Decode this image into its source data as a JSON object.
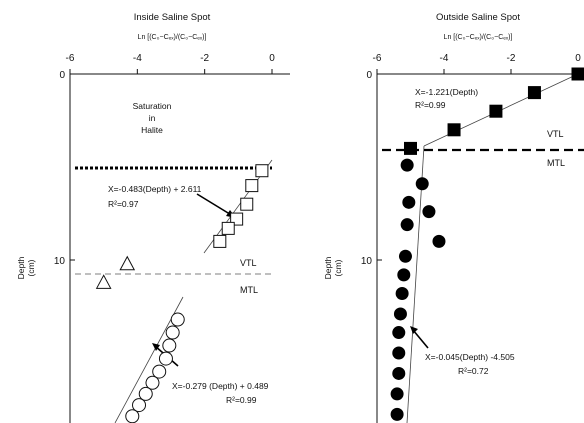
{
  "chart_data": [
    {
      "type": "scatter",
      "title": "Inside Saline Spot",
      "xlabel": "Ln [(C₀−Cₑₓ)/(C₀−Cₑₓ)]",
      "ylabel": "Depth",
      "ylabel_unit": "(cm)",
      "xlim": [
        -6,
        0
      ],
      "ylim": [
        0,
        18.5
      ],
      "x_ticks": [
        "-6",
        "-4",
        "-2",
        "0"
      ],
      "y_ticks": [
        "0",
        "10"
      ],
      "series": [
        {
          "marker": "square",
          "x": [
            -0.3,
            -0.6,
            -0.75,
            -1.05,
            -1.3,
            -1.55
          ],
          "y": [
            5.2,
            6.0,
            7.0,
            7.8,
            8.3,
            9.0
          ]
        },
        {
          "marker": "triangle",
          "x": [
            -4.3,
            -5.0
          ],
          "y": [
            10.2,
            11.2
          ]
        },
        {
          "marker": "circle",
          "x": [
            -2.8,
            -2.95,
            -3.05,
            -3.15,
            -3.35,
            -3.55,
            -3.75,
            -3.95,
            -4.15
          ],
          "y": [
            13.2,
            13.9,
            14.6,
            15.3,
            16.0,
            16.6,
            17.2,
            17.8,
            18.4
          ]
        }
      ],
      "annotations": {
        "saturation": [
          "Saturation",
          "in",
          "Halite"
        ],
        "fit_upper": "X=-0.483(Depth) + 2.611",
        "r2_upper": "R²=0.97",
        "fit_lower": "X=-0.279 (Depth) + 0.489",
        "r2_lower": "R²=0.99",
        "vtl": "VTL",
        "mtl": "MTL"
      }
    },
    {
      "type": "scatter",
      "title": "Outside Saline Spot",
      "xlabel": "Ln [(C₀−Cₑₓ)/(C₀−Cₑₓ)]",
      "ylabel": "Depth",
      "ylabel_unit": "(cm)",
      "xlim": [
        -6,
        0
      ],
      "ylim": [
        0,
        18.5
      ],
      "x_ticks": [
        "-6",
        "-4",
        "-2",
        "0"
      ],
      "y_ticks": [
        "0",
        "10"
      ],
      "series": [
        {
          "marker": "filled-square",
          "x": [
            0,
            -1.3,
            -2.45,
            -3.7,
            -5.0
          ],
          "y": [
            0,
            1.0,
            2.0,
            3.0,
            4.0
          ]
        },
        {
          "marker": "filled-circle",
          "x": [
            -5.1,
            -4.65,
            -5.05,
            -4.45,
            -5.1,
            -4.15,
            -5.15,
            -5.2,
            -5.25,
            -5.3,
            -5.35,
            -5.35,
            -5.35,
            -5.4,
            -5.4
          ],
          "y": [
            4.9,
            5.9,
            6.9,
            7.4,
            8.1,
            9.0,
            9.8,
            10.8,
            11.8,
            12.9,
            13.9,
            15.0,
            16.1,
            17.2,
            18.3
          ]
        }
      ],
      "annotations": {
        "fit_upper": "X=-1.221(Depth)",
        "r2_upper": "R²=0.99",
        "fit_lower": "X=-0.045(Depth) -4.505",
        "r2_lower": "R²=0.72",
        "vtl": "VTL",
        "mtl": "MTL"
      }
    }
  ]
}
